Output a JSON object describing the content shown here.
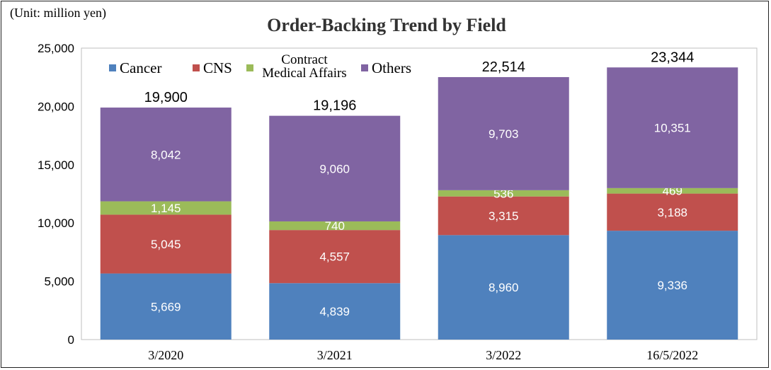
{
  "chart_data": {
    "type": "bar",
    "stacked": true,
    "unit_note": "(Unit: million yen)",
    "title": "Order-Backing Trend by Field",
    "xlabel": "",
    "ylabel": "",
    "categories": [
      "3/2020",
      "3/2021",
      "3/2022",
      "16/5/2022"
    ],
    "ylim": [
      0,
      25000
    ],
    "yticks": [
      "0",
      "5,000",
      "10,000",
      "15,000",
      "20,000",
      "25,000"
    ],
    "ytick_values": [
      0,
      5000,
      10000,
      15000,
      20000,
      25000
    ],
    "grid": false,
    "legend_position": "top-left inside plot",
    "series": [
      {
        "name": "Cancer",
        "color": "#4f81bd",
        "values": [
          5669,
          4839,
          8960,
          9336
        ],
        "labels": [
          "5,669",
          "4,839",
          "8,960",
          "9,336"
        ]
      },
      {
        "name": "CNS",
        "color": "#c0504d",
        "values": [
          5045,
          4557,
          3315,
          3188
        ],
        "labels": [
          "5,045",
          "4,557",
          "3,315",
          "3,188"
        ]
      },
      {
        "name": "Contract Medical Affairs",
        "name_lines": [
          "Contract",
          "Medical Affairs"
        ],
        "color": "#9bbb59",
        "values": [
          1145,
          740,
          536,
          469
        ],
        "labels": [
          "1,145",
          "740",
          "536",
          "469"
        ]
      },
      {
        "name": "Others",
        "color": "#8064a2",
        "values": [
          8042,
          9060,
          9703,
          10351
        ],
        "labels": [
          "8,042",
          "9,060",
          "9,703",
          "10,351"
        ]
      }
    ],
    "totals": [
      19900,
      19196,
      22514,
      23344
    ],
    "total_labels": [
      "19,900",
      "19,196",
      "22,514",
      "23,344"
    ]
  }
}
